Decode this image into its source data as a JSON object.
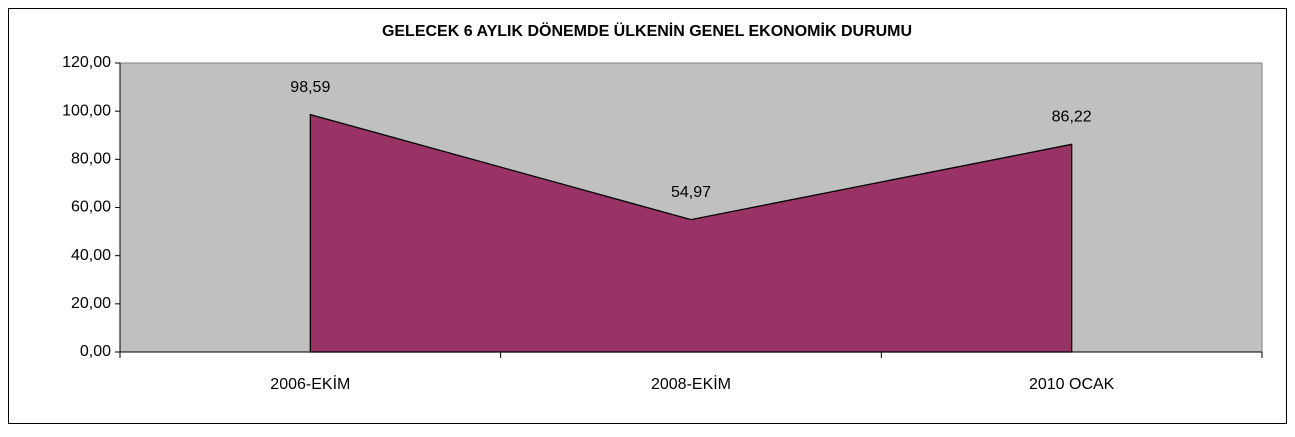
{
  "chart_data": {
    "type": "area",
    "title": "GELECEK 6 AYLIK DÖNEMDE ÜLKENİN GENEL EKONOMİK DURUMU",
    "categories": [
      "2006-EKİM",
      "2008-EKİM",
      "2010 OCAK"
    ],
    "values": [
      98.59,
      54.97,
      86.22
    ],
    "value_labels": [
      "98,59",
      "54,97",
      "86,22"
    ],
    "color": "#993366",
    "ylim": [
      0,
      120
    ],
    "yticks": [
      {
        "value": 0,
        "label": "0,00"
      },
      {
        "value": 20,
        "label": "20,00"
      },
      {
        "value": 40,
        "label": "40,00"
      },
      {
        "value": 60,
        "label": "60,00"
      },
      {
        "value": 80,
        "label": "80,00"
      },
      {
        "value": 100,
        "label": "100,00"
      },
      {
        "value": 120,
        "label": "120,00"
      }
    ],
    "grid": false
  }
}
